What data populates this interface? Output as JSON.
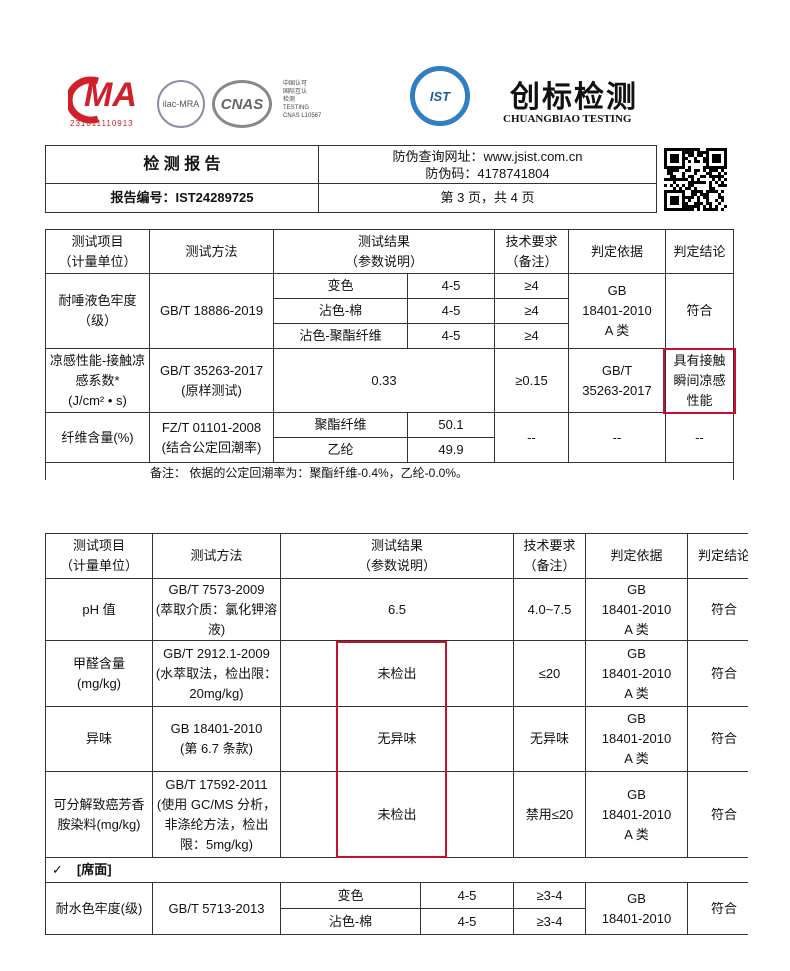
{
  "header": {
    "cma_mark": "MA",
    "cma_number": "231011110913",
    "ilac": "ilac-MRA",
    "cnas": "CNAS",
    "cnas_text": "中国认可\n国际互认\n检测\nTESTING\nCNAS L10567",
    "ist_logo": "IST",
    "brand_cn": "创标检测",
    "brand_en": "CHUANGBIAO TESTING"
  },
  "report": {
    "title": "检 测 报 告",
    "url": "防伪查询网址：www.jsist.com.cn",
    "code": "防伪码：4178741804",
    "number": "报告编号：IST24289725",
    "page": "第 3 页，共 4 页"
  },
  "table1": {
    "headers": [
      "测试项目\n（计量单位）",
      "测试方法",
      "测试结果\n（参数说明）",
      "技术要求\n（备注）",
      "判定依据",
      "判定结论"
    ],
    "rows": [
      {
        "item": "耐唾液色牢度\n（级）",
        "method": "GB/T 18886-2019",
        "results": [
          {
            "label": "变色",
            "value": "4-5"
          },
          {
            "label": "沾色-棉",
            "value": "4-5"
          },
          {
            "label": "沾色-聚酯纤维",
            "value": "4-5"
          }
        ],
        "requirements": [
          "≥4",
          "≥4",
          "≥4"
        ],
        "basis": "GB\n18401-2010\nA 类",
        "conclusion": "符合"
      },
      {
        "item": "凉感性能-接触凉\n感系数*\n(J/cm² • s)",
        "method": "GB/T 35263-2017\n(原样测试)",
        "result": "0.33",
        "requirement": "≥0.15",
        "basis": "GB/T\n35263-2017",
        "conclusion": "具有接触\n瞬间凉感\n性能"
      },
      {
        "item": "纤维含量(%)",
        "method": "FZ/T 01101-2008\n(结合公定回潮率)",
        "results": [
          {
            "label": "聚酯纤维",
            "value": "50.1"
          },
          {
            "label": "乙纶",
            "value": "49.9"
          }
        ],
        "requirement": "--",
        "basis": "--",
        "conclusion": "--"
      }
    ],
    "note": "备注： 依据的公定回潮率为：聚酯纤维-0.4%，乙纶-0.0%。"
  },
  "table2": {
    "headers": [
      "测试项目\n（计量单位）",
      "测试方法",
      "测试结果\n（参数说明）",
      "技术要求\n（备注）",
      "判定依据",
      "判定结论"
    ],
    "rows": [
      {
        "item": "pH 值",
        "method": "GB/T 7573-2009\n(萃取介质：氯化钾溶\n液)",
        "result": "6.5",
        "requirement": "4.0~7.5",
        "basis": "GB\n18401-2010\nA 类",
        "conclusion": "符合"
      },
      {
        "item": "甲醛含量\n(mg/kg)",
        "method": "GB/T 2912.1-2009\n(水萃取法，检出限：\n20mg/kg)",
        "result": "未检出",
        "requirement": "≤20",
        "basis": "GB\n18401-2010\nA 类",
        "conclusion": "符合"
      },
      {
        "item": "异味",
        "method": "GB 18401-2010\n(第 6.7 条款)",
        "result": "无异味",
        "requirement": "无异味",
        "basis": "GB\n18401-2010\nA 类",
        "conclusion": "符合"
      },
      {
        "item": "可分解致癌芳香\n胺染料(mg/kg)",
        "method": "GB/T 17592-2011\n(使用 GC/MS 分析，\n非涤纶方法，检出\n限：5mg/kg)",
        "result": "未检出",
        "requirement": "禁用≤20",
        "basis": "GB\n18401-2010\nA 类",
        "conclusion": "符合"
      }
    ],
    "section": {
      "check": "✓",
      "label": "[席面]"
    },
    "last_row": {
      "item": "耐水色牢度(级)",
      "method": "GB/T 5713-2013",
      "results": [
        {
          "label": "变色",
          "value": "4-5"
        },
        {
          "label": "沾色-棉",
          "value": "4-5"
        }
      ],
      "requirements": [
        "≥3-4",
        "≥3-4"
      ],
      "basis": "GB\n18401-2010",
      "conclusion": "符合"
    }
  }
}
